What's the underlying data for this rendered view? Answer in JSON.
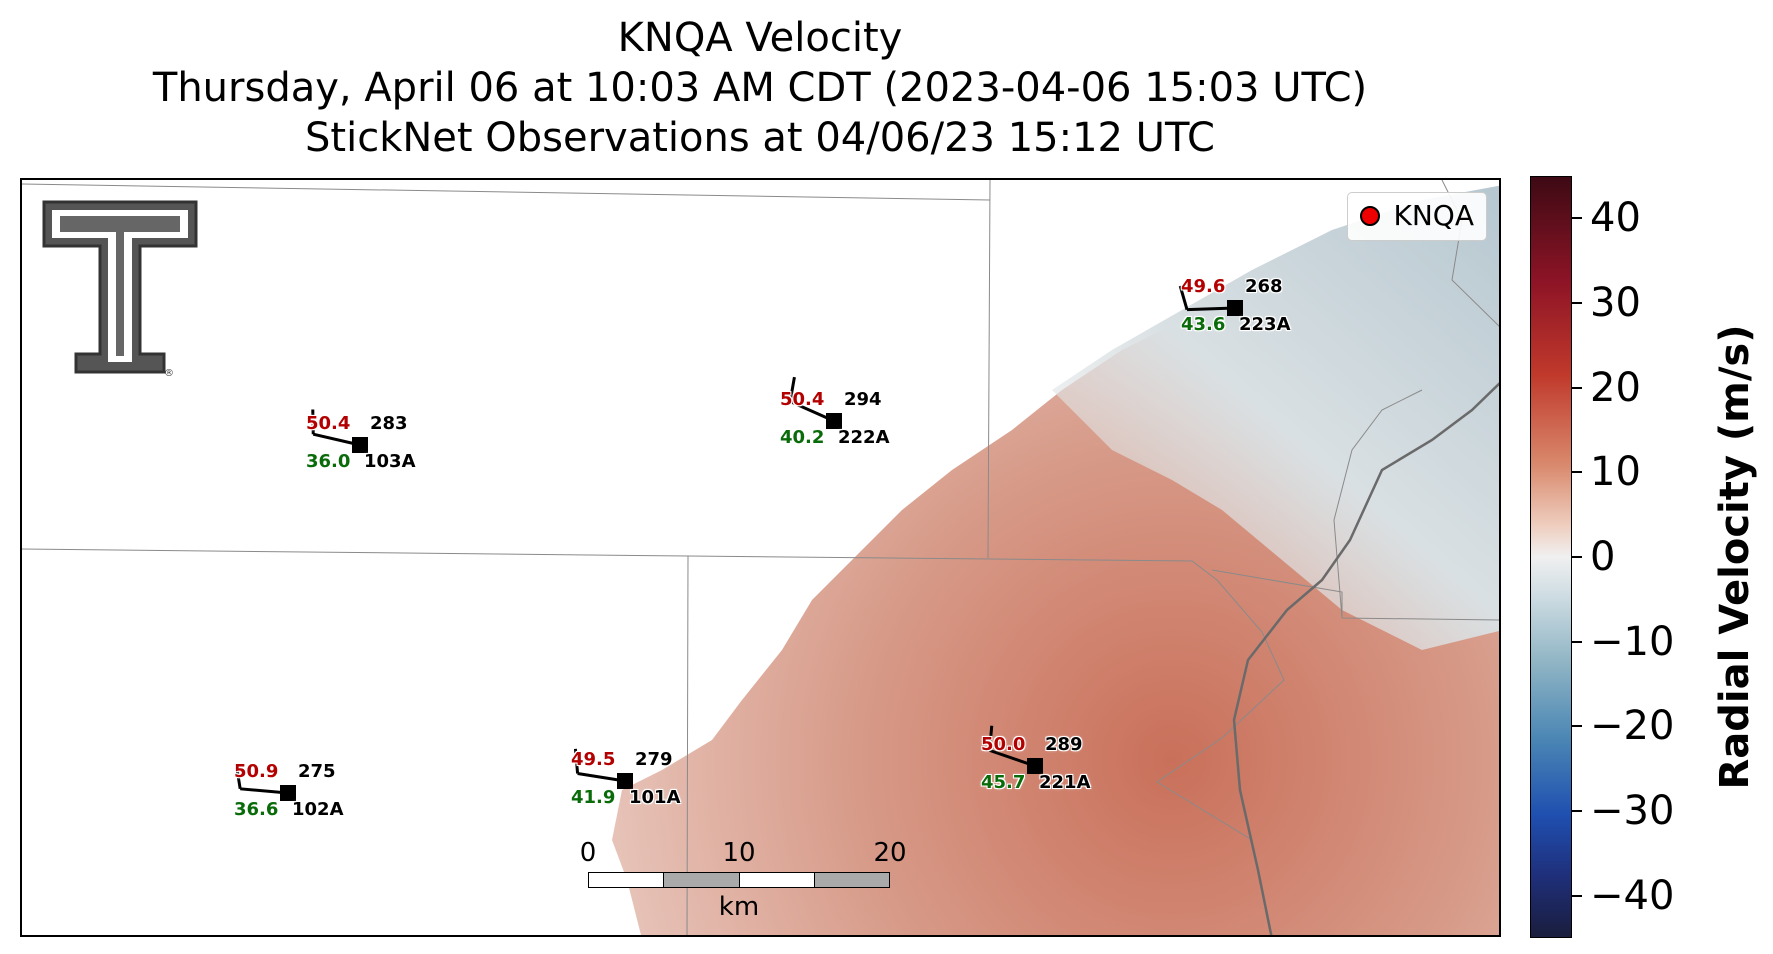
{
  "title": {
    "line1": "KNQA Velocity",
    "line2": "Thursday, April 06 at 10:03 AM CDT (2023-04-06 15:03 UTC)",
    "line3": "StickNet Observations at 04/06/23 15:12 UTC"
  },
  "legend": {
    "label": "KNQA",
    "marker_color": "#e00000"
  },
  "logo": {
    "icon": "texas-tech-double-t-logo",
    "mark": "®"
  },
  "stations": [
    {
      "id": "103A",
      "temp": "50.4",
      "dew": "36.0",
      "dir": "283"
    },
    {
      "id": "222A",
      "temp": "50.4",
      "dew": "40.2",
      "dir": "294"
    },
    {
      "id": "223A",
      "temp": "49.6",
      "dew": "43.6",
      "dir": "268"
    },
    {
      "id": "102A",
      "temp": "50.9",
      "dew": "36.6",
      "dir": "275"
    },
    {
      "id": "101A",
      "temp": "49.5",
      "dew": "41.9",
      "dir": "279"
    },
    {
      "id": "221A",
      "temp": "50.0",
      "dew": "45.7",
      "dir": "289"
    }
  ],
  "scalebar": {
    "ticks": [
      "0",
      "10",
      "20"
    ],
    "unit": "km"
  },
  "colorbar": {
    "label": "Radial Velocity (m/s)",
    "ticks": [
      "40",
      "30",
      "20",
      "10",
      "0",
      "−10",
      "−20",
      "−30",
      "−40"
    ],
    "range": [
      -45,
      45
    ]
  }
}
